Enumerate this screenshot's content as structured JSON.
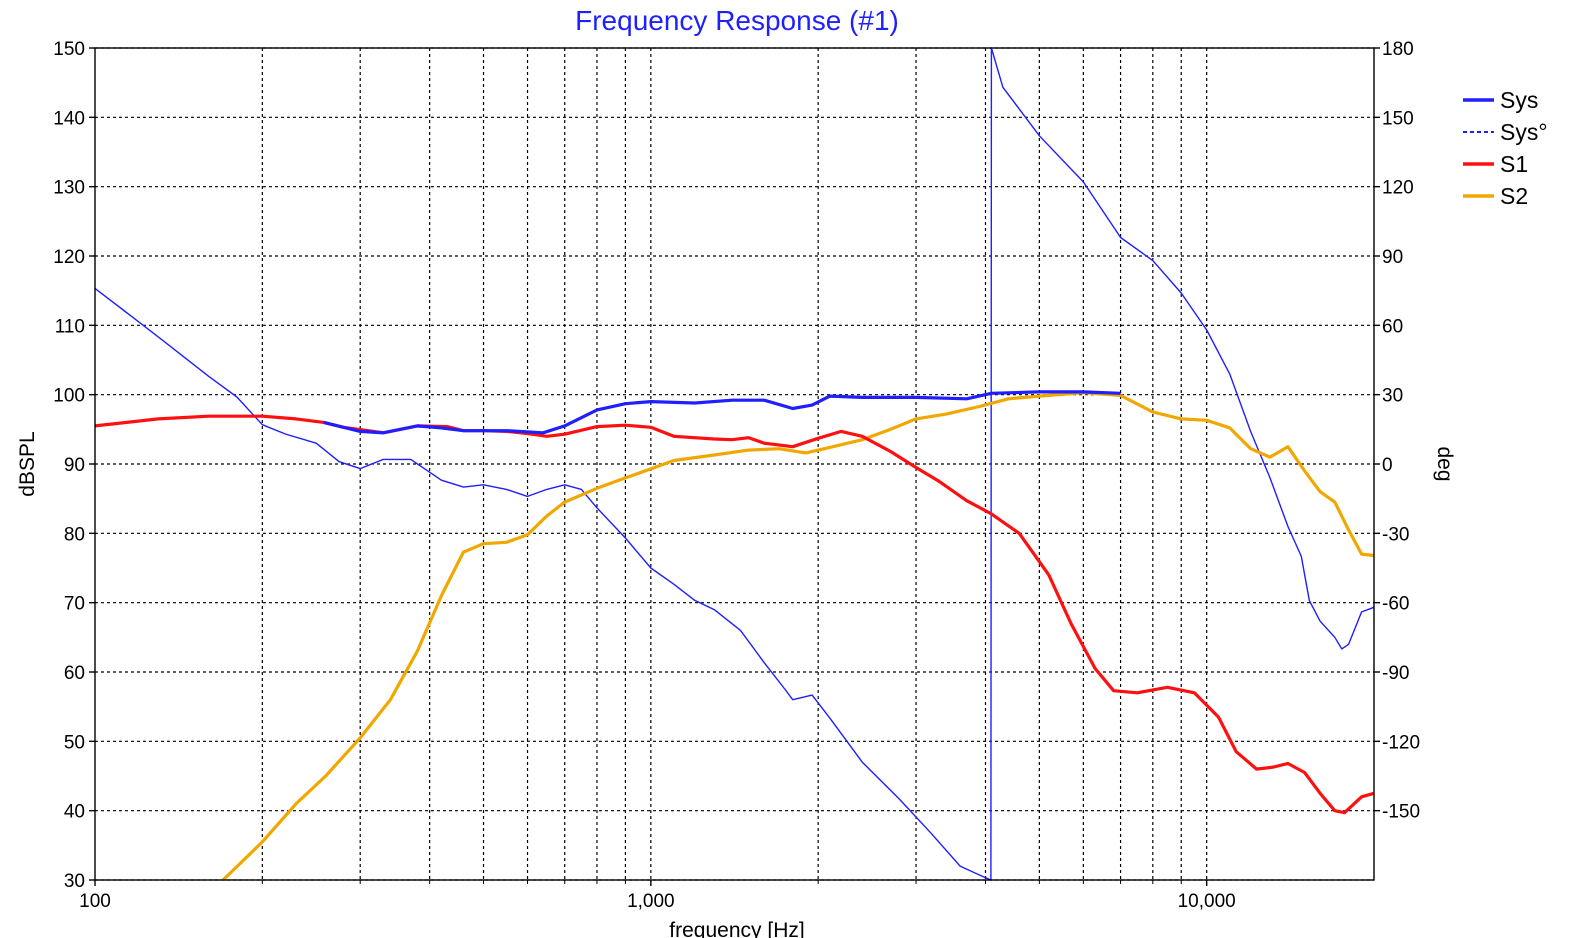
{
  "chart_data": {
    "type": "line",
    "title": "Frequency Response (#1)",
    "xlabel": "frequency [Hz]",
    "ylabel_left": "dBSPL",
    "ylabel_right": "deg",
    "x_scale": "log",
    "xlim": [
      100,
      20000
    ],
    "ylim_left": [
      30,
      150
    ],
    "ylim_right": [
      -180,
      180
    ],
    "grid": true,
    "legend_position": "right",
    "x_ticks": [
      {
        "value": 100,
        "label": "100"
      },
      {
        "value": 1000,
        "label": "1,000"
      },
      {
        "value": 10000,
        "label": "10,000"
      }
    ],
    "y_ticks_left": [
      {
        "value": 150,
        "label": "150"
      },
      {
        "value": 140,
        "label": "140"
      },
      {
        "value": 130,
        "label": "130"
      },
      {
        "value": 120,
        "label": "120"
      },
      {
        "value": 110,
        "label": "110"
      },
      {
        "value": 100,
        "label": "100"
      },
      {
        "value": 90,
        "label": "90"
      },
      {
        "value": 80,
        "label": "80"
      },
      {
        "value": 70,
        "label": "70"
      },
      {
        "value": 60,
        "label": "60"
      },
      {
        "value": 50,
        "label": "50"
      },
      {
        "value": 40,
        "label": "40"
      },
      {
        "value": 30,
        "label": "30"
      }
    ],
    "y_ticks_right": [
      {
        "value": 180,
        "label": "180"
      },
      {
        "value": 150,
        "label": "150"
      },
      {
        "value": 120,
        "label": "120"
      },
      {
        "value": 90,
        "label": "90"
      },
      {
        "value": 60,
        "label": "60"
      },
      {
        "value": 30,
        "label": "30"
      },
      {
        "value": 0,
        "label": "0"
      },
      {
        "value": -30,
        "label": "-30"
      },
      {
        "value": -60,
        "label": "-60"
      },
      {
        "value": -90,
        "label": "-90"
      },
      {
        "value": -120,
        "label": "-120"
      },
      {
        "value": -150,
        "label": "-150"
      }
    ],
    "series": [
      {
        "name": "Sys",
        "axis": "left",
        "color": "#1f1fff",
        "style": "solid",
        "points": [
          [
            258,
            96
          ],
          [
            300,
            94.7
          ],
          [
            330,
            94.5
          ],
          [
            380,
            95.5
          ],
          [
            420,
            95.2
          ],
          [
            460,
            94.8
          ],
          [
            550,
            94.8
          ],
          [
            640,
            94.5
          ],
          [
            700,
            95.5
          ],
          [
            800,
            97.8
          ],
          [
            900,
            98.7
          ],
          [
            1000,
            99
          ],
          [
            1200,
            98.8
          ],
          [
            1400,
            99.2
          ],
          [
            1600,
            99.2
          ],
          [
            1800,
            98
          ],
          [
            1950,
            98.5
          ],
          [
            2100,
            99.8
          ],
          [
            2400,
            99.6
          ],
          [
            3000,
            99.6
          ],
          [
            3700,
            99.4
          ],
          [
            4100,
            100.2
          ],
          [
            5000,
            100.4
          ],
          [
            6000,
            100.4
          ],
          [
            7000,
            100.2
          ]
        ]
      },
      {
        "name": "Sys°",
        "axis": "right",
        "color": "#1f1fff",
        "style": "dashed",
        "points": [
          [
            100,
            76
          ],
          [
            130,
            55
          ],
          [
            160,
            38
          ],
          [
            180,
            29
          ],
          [
            200,
            17
          ],
          [
            220,
            13
          ],
          [
            250,
            9
          ],
          [
            275,
            1
          ],
          [
            300,
            -2
          ],
          [
            330,
            2
          ],
          [
            370,
            2
          ],
          [
            420,
            -7
          ],
          [
            460,
            -10
          ],
          [
            500,
            -9
          ],
          [
            550,
            -11
          ],
          [
            600,
            -14
          ],
          [
            650,
            -11
          ],
          [
            700,
            -9
          ],
          [
            750,
            -11
          ],
          [
            800,
            -19
          ],
          [
            900,
            -32
          ],
          [
            1000,
            -45
          ],
          [
            1100,
            -52
          ],
          [
            1200,
            -59
          ],
          [
            1300,
            -63
          ],
          [
            1450,
            -72
          ],
          [
            1600,
            -86
          ],
          [
            1750,
            -98
          ],
          [
            1800,
            -102
          ],
          [
            1950,
            -100
          ],
          [
            2100,
            -110
          ],
          [
            2400,
            -129
          ],
          [
            2800,
            -145
          ],
          [
            3200,
            -160
          ],
          [
            3600,
            -174
          ],
          [
            4000,
            -179
          ],
          [
            4090,
            -180
          ],
          [
            4100,
            180
          ],
          [
            4300,
            163
          ],
          [
            5000,
            142
          ],
          [
            6000,
            122
          ],
          [
            7000,
            98
          ],
          [
            8000,
            88
          ],
          [
            9000,
            74
          ],
          [
            10000,
            58
          ],
          [
            11000,
            39
          ],
          [
            12000,
            14
          ],
          [
            13000,
            -6
          ],
          [
            14000,
            -27
          ],
          [
            14800,
            -40
          ],
          [
            15300,
            -59
          ],
          [
            16000,
            -68
          ],
          [
            17000,
            -75
          ],
          [
            17500,
            -80
          ],
          [
            18000,
            -78
          ],
          [
            19000,
            -64
          ],
          [
            20000,
            -62
          ]
        ]
      },
      {
        "name": "S1",
        "axis": "left",
        "color": "#ff1010",
        "style": "solid",
        "points": [
          [
            100,
            95.5
          ],
          [
            130,
            96.5
          ],
          [
            160,
            96.9
          ],
          [
            200,
            96.9
          ],
          [
            230,
            96.5
          ],
          [
            258,
            96
          ],
          [
            280,
            95.3
          ],
          [
            330,
            94.5
          ],
          [
            380,
            95.5
          ],
          [
            430,
            95.4
          ],
          [
            460,
            94.8
          ],
          [
            500,
            94.8
          ],
          [
            550,
            94.7
          ],
          [
            600,
            94.4
          ],
          [
            650,
            94
          ],
          [
            700,
            94.3
          ],
          [
            800,
            95.4
          ],
          [
            900,
            95.6
          ],
          [
            1000,
            95.3
          ],
          [
            1100,
            94
          ],
          [
            1300,
            93.6
          ],
          [
            1400,
            93.5
          ],
          [
            1500,
            93.8
          ],
          [
            1600,
            93
          ],
          [
            1800,
            92.5
          ],
          [
            2000,
            93.7
          ],
          [
            2200,
            94.7
          ],
          [
            2400,
            94
          ],
          [
            2700,
            91.8
          ],
          [
            3000,
            89.5
          ],
          [
            3300,
            87.5
          ],
          [
            3700,
            84.7
          ],
          [
            4100,
            82.8
          ],
          [
            4600,
            80
          ],
          [
            5200,
            74
          ],
          [
            5700,
            67
          ],
          [
            6300,
            60.5
          ],
          [
            6800,
            57.3
          ],
          [
            7500,
            57
          ],
          [
            8500,
            57.8
          ],
          [
            9500,
            57
          ],
          [
            10500,
            53.5
          ],
          [
            11300,
            48.5
          ],
          [
            12300,
            46
          ],
          [
            13200,
            46.3
          ],
          [
            14000,
            46.8
          ],
          [
            15000,
            45.5
          ],
          [
            16000,
            42.5
          ],
          [
            17000,
            40
          ],
          [
            17700,
            39.7
          ],
          [
            19000,
            42
          ],
          [
            20000,
            42.5
          ]
        ]
      },
      {
        "name": "S2",
        "axis": "left",
        "color": "#f0a800",
        "style": "solid",
        "points": [
          [
            170,
            30
          ],
          [
            200,
            35.5
          ],
          [
            230,
            41
          ],
          [
            260,
            45
          ],
          [
            300,
            50.5
          ],
          [
            340,
            56
          ],
          [
            380,
            63
          ],
          [
            420,
            71
          ],
          [
            460,
            77.3
          ],
          [
            500,
            78.5
          ],
          [
            550,
            78.7
          ],
          [
            600,
            79.8
          ],
          [
            650,
            82.5
          ],
          [
            700,
            84.5
          ],
          [
            800,
            86.5
          ],
          [
            900,
            88
          ],
          [
            1000,
            89.3
          ],
          [
            1100,
            90.5
          ],
          [
            1300,
            91.3
          ],
          [
            1500,
            92
          ],
          [
            1700,
            92.2
          ],
          [
            1900,
            91.6
          ],
          [
            2100,
            92.4
          ],
          [
            2400,
            93.5
          ],
          [
            2700,
            95
          ],
          [
            3000,
            96.5
          ],
          [
            3400,
            97.2
          ],
          [
            3900,
            98.3
          ],
          [
            4400,
            99.4
          ],
          [
            5000,
            99.8
          ],
          [
            6000,
            100.3
          ],
          [
            7000,
            99.9
          ],
          [
            8000,
            97.5
          ],
          [
            9000,
            96.5
          ],
          [
            10000,
            96.3
          ],
          [
            11000,
            95.2
          ],
          [
            12000,
            92.2
          ],
          [
            13000,
            91
          ],
          [
            14000,
            92.5
          ],
          [
            15000,
            89
          ],
          [
            16000,
            86
          ],
          [
            17000,
            84.5
          ],
          [
            18000,
            80.5
          ],
          [
            19000,
            77
          ],
          [
            20000,
            76.8
          ]
        ]
      }
    ]
  },
  "legend": {
    "items": [
      {
        "label": "Sys",
        "color": "#1f1fff",
        "style": "solid"
      },
      {
        "label": "Sys°",
        "color": "#1f1fff",
        "style": "dashed"
      },
      {
        "label": "S1",
        "color": "#ff1010",
        "style": "solid"
      },
      {
        "label": "S2",
        "color": "#f0a800",
        "style": "solid"
      }
    ]
  }
}
